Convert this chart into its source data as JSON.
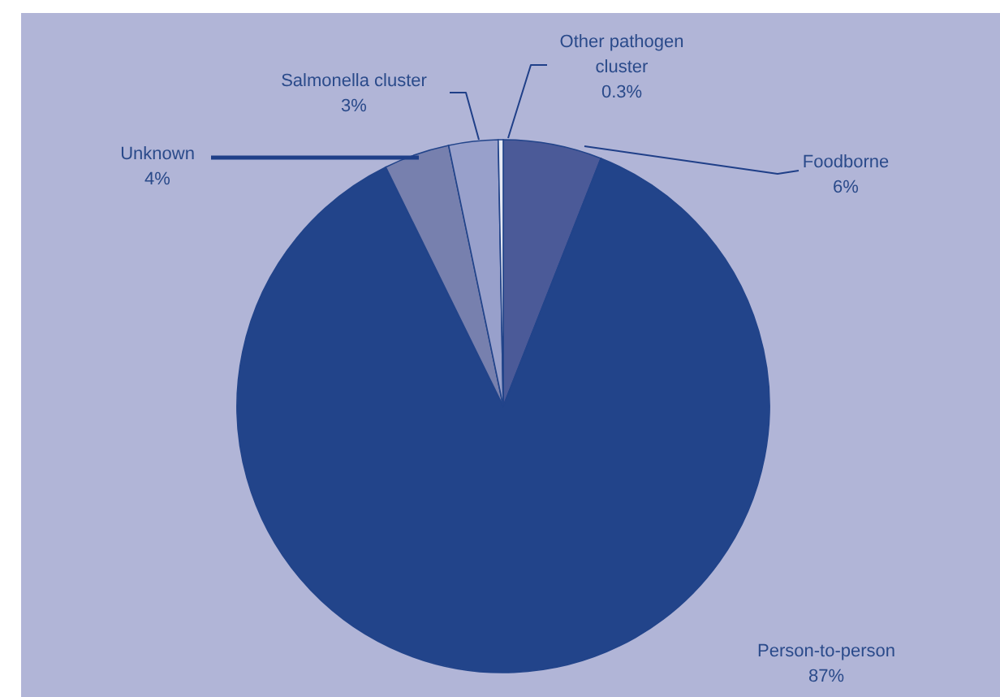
{
  "chart_data": {
    "type": "pie",
    "categories": [
      "Foodborne",
      "Person-to-person",
      "Unknown",
      "Salmonella cluster",
      "Other pathogen cluster"
    ],
    "values": [
      6,
      87,
      4,
      3,
      0.3
    ],
    "colors": [
      "#4b5a98",
      "#22448a",
      "#7780ae",
      "#98a0cb",
      "#e8eaf4"
    ],
    "value_labels": [
      "6%",
      "87%",
      "4%",
      "3%",
      "0.3%"
    ]
  }
}
